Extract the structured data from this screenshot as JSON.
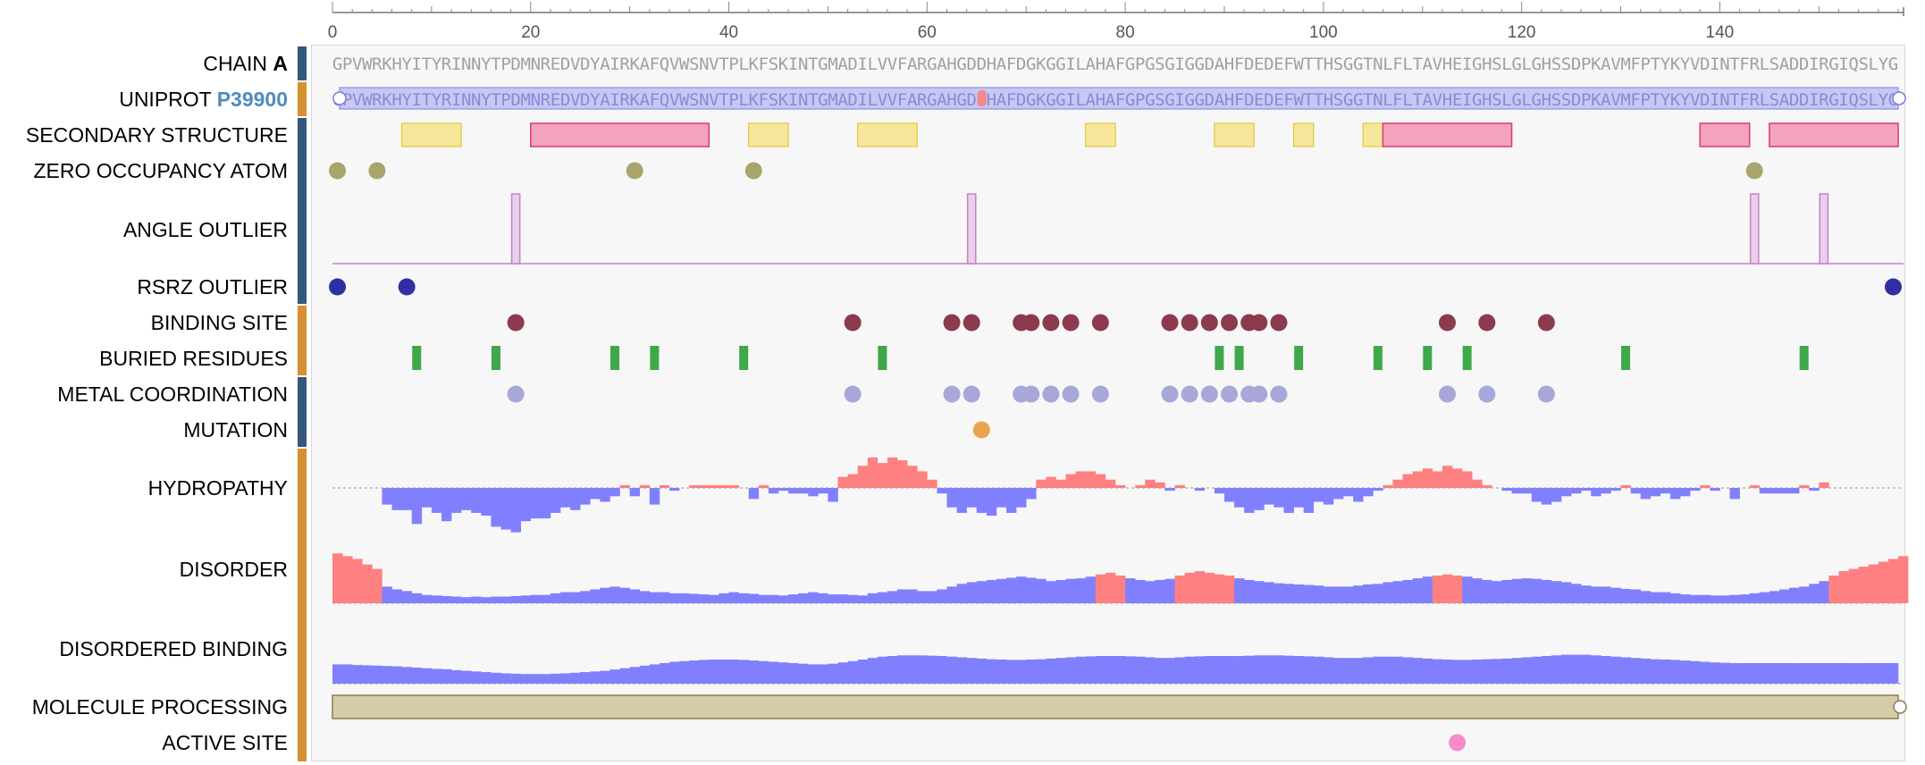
{
  "colors": {
    "structure_bar": "#34597f",
    "annotation_bar": "#d7902e",
    "helix": "#f4a3bd",
    "helix_stroke": "#d83c6a",
    "strand": "#f7e79c",
    "strand_stroke": "#e4c63b",
    "zero_occupancy": "#a8a56a",
    "angle_outlier": "#e8d0ea",
    "angle_stroke": "#c77fc8",
    "rsrz": "#2f2fa3",
    "binding_site": "#8c3a4e",
    "buried": "#3ea84a",
    "metal": "#a7a7da",
    "mutation": "#e8a64c",
    "hydro_pos": "#ff8080",
    "hydro_neg": "#8080ff",
    "disorder_pos": "#ff8080",
    "disorder_neg": "#8080ff",
    "processing": "#d7ccaa",
    "active_site": "#f78bc9",
    "uniprot_seq_bg": "#c7c7f5",
    "accent": "#4f8bbd"
  },
  "axis": {
    "min": 0,
    "max": 158,
    "ticks": [
      0,
      20,
      40,
      60,
      80,
      100,
      120,
      140
    ]
  },
  "sequence": "GPVWRKHYITYRINNYTPDMNREDVDYAIRKAFQVWSNVTPLKFSKINTGMADILVVFARGAHGDDHAFDGKGGILAHAFGPGSGIGGDAHFDEDEFWTTHSGGTNLFLTAVHEIGHSLGLGHSSDPKAVMFPTYKYVDINTFRLSADDIRGIQSLYG",
  "tracks": {
    "chain": {
      "label": "CHAIN",
      "id": "A"
    },
    "uniprot": {
      "label": "UNIPROT",
      "accession": "P39900",
      "mutation_pos": 66
    },
    "secondary_structure": {
      "label": "SECONDARY STRUCTURE",
      "strands": [
        [
          8,
          13
        ],
        [
          43,
          46
        ],
        [
          54,
          59
        ],
        [
          77,
          79
        ],
        [
          90,
          93
        ],
        [
          98,
          99
        ],
        [
          105,
          106
        ]
      ],
      "helices": [
        [
          21,
          38
        ],
        [
          107,
          119
        ],
        [
          139,
          143
        ],
        [
          146,
          158
        ]
      ]
    },
    "zero_occupancy": {
      "label": "ZERO OCCUPANCY ATOM",
      "positions": [
        1,
        5,
        31,
        43,
        144
      ]
    },
    "angle_outlier": {
      "label": "ANGLE OUTLIER",
      "positions": [
        19,
        65,
        144,
        151
      ]
    },
    "rsrz_outlier": {
      "label": "RSRZ OUTLIER",
      "positions": [
        1,
        8,
        158
      ]
    },
    "binding_site": {
      "label": "BINDING SITE",
      "positions": [
        19,
        53,
        63,
        65,
        70,
        71,
        73,
        75,
        78,
        85,
        87,
        89,
        91,
        93,
        94,
        96,
        113,
        117,
        123
      ]
    },
    "buried_residues": {
      "label": "BURIED RESIDUES",
      "positions": [
        9,
        17,
        29,
        33,
        42,
        56,
        90,
        92,
        98,
        106,
        111,
        115,
        131,
        149
      ]
    },
    "metal_coordination": {
      "label": "METAL COORDINATION",
      "positions": [
        19,
        53,
        63,
        65,
        70,
        71,
        73,
        75,
        78,
        85,
        87,
        89,
        91,
        93,
        94,
        96,
        113,
        117,
        123
      ]
    },
    "mutation": {
      "label": "MUTATION",
      "positions": [
        66
      ]
    },
    "hydropathy": {
      "label": "HYDROPATHY"
    },
    "disorder": {
      "label": "DISORDER"
    },
    "disordered_binding": {
      "label": "DISORDERED BINDING"
    },
    "molecule_processing": {
      "label": "MOLECULE PROCESSING",
      "range": [
        1,
        158
      ]
    },
    "active_site": {
      "label": "ACTIVE SITE",
      "positions": [
        114
      ]
    }
  },
  "hydropathy_values": [
    0,
    0,
    0,
    0,
    0,
    -0.3,
    -0.4,
    -0.4,
    -0.65,
    -0.35,
    -0.45,
    -0.6,
    -0.45,
    -0.4,
    -0.45,
    -0.5,
    -0.7,
    -0.75,
    -0.8,
    -0.6,
    -0.55,
    -0.55,
    -0.45,
    -0.35,
    -0.4,
    -0.3,
    -0.2,
    -0.25,
    -0.15,
    0.05,
    -0.15,
    0.05,
    -0.3,
    0.05,
    -0.05,
    0,
    0.05,
    0.05,
    0.05,
    0.05,
    0.05,
    0,
    -0.2,
    0.05,
    -0.1,
    -0.05,
    -0.1,
    -0.1,
    -0.15,
    -0.1,
    -0.25,
    0.2,
    0.25,
    0.4,
    0.55,
    0.45,
    0.55,
    0.5,
    0.4,
    0.3,
    0.15,
    -0.1,
    -0.35,
    -0.45,
    -0.35,
    -0.45,
    -0.5,
    -0.35,
    -0.45,
    -0.35,
    -0.2,
    0.15,
    0.2,
    0.15,
    0.25,
    0.3,
    0.3,
    0.25,
    0.15,
    0.05,
    0,
    0.05,
    0.15,
    0.1,
    -0.05,
    0.05,
    0,
    -0.05,
    0,
    -0.1,
    -0.25,
    -0.35,
    -0.45,
    -0.4,
    -0.3,
    -0.35,
    -0.45,
    -0.35,
    -0.45,
    -0.25,
    -0.3,
    -0.2,
    -0.15,
    -0.25,
    -0.15,
    -0.05,
    0.05,
    0.15,
    0.25,
    0.3,
    0.35,
    0.3,
    0.4,
    0.35,
    0.3,
    0.15,
    0.05,
    0,
    -0.05,
    -0.1,
    -0.1,
    -0.25,
    -0.3,
    -0.25,
    -0.15,
    -0.1,
    -0.05,
    -0.15,
    -0.1,
    -0.05,
    0.05,
    -0.1,
    -0.2,
    -0.15,
    -0.1,
    -0.2,
    -0.15,
    -0.05,
    0.05,
    -0.05,
    0,
    -0.2,
    0,
    0.05,
    -0.1,
    -0.1,
    -0.1,
    -0.1,
    0.05,
    -0.05,
    0.1,
    0,
    0,
    0,
    0,
    0,
    0
  ],
  "disorder_values": [
    0.9,
    0.85,
    0.8,
    0.7,
    0.62,
    0.3,
    0.25,
    0.22,
    0.18,
    0.15,
    0.14,
    0.13,
    0.12,
    0.11,
    0.12,
    0.11,
    0.12,
    0.12,
    0.13,
    0.14,
    0.15,
    0.15,
    0.18,
    0.2,
    0.2,
    0.22,
    0.25,
    0.28,
    0.3,
    0.28,
    0.25,
    0.22,
    0.2,
    0.2,
    0.18,
    0.18,
    0.17,
    0.16,
    0.15,
    0.18,
    0.2,
    0.18,
    0.17,
    0.15,
    0.15,
    0.14,
    0.16,
    0.18,
    0.2,
    0.18,
    0.16,
    0.16,
    0.15,
    0.14,
    0.18,
    0.2,
    0.22,
    0.25,
    0.25,
    0.22,
    0.22,
    0.25,
    0.3,
    0.35,
    0.38,
    0.4,
    0.42,
    0.44,
    0.46,
    0.48,
    0.46,
    0.44,
    0.4,
    0.42,
    0.44,
    0.45,
    0.48,
    0.52,
    0.55,
    0.5,
    0.45,
    0.42,
    0.4,
    0.42,
    0.44,
    0.5,
    0.55,
    0.58,
    0.55,
    0.52,
    0.5,
    0.45,
    0.42,
    0.4,
    0.38,
    0.36,
    0.35,
    0.34,
    0.33,
    0.32,
    0.3,
    0.3,
    0.3,
    0.32,
    0.34,
    0.35,
    0.38,
    0.4,
    0.42,
    0.45,
    0.48,
    0.5,
    0.52,
    0.5,
    0.48,
    0.45,
    0.42,
    0.4,
    0.42,
    0.44,
    0.45,
    0.44,
    0.42,
    0.4,
    0.38,
    0.35,
    0.32,
    0.3,
    0.3,
    0.28,
    0.26,
    0.25,
    0.22,
    0.2,
    0.2,
    0.18,
    0.16,
    0.15,
    0.15,
    0.14,
    0.14,
    0.15,
    0.16,
    0.18,
    0.2,
    0.22,
    0.25,
    0.28,
    0.3,
    0.35,
    0.4,
    0.5,
    0.58,
    0.62,
    0.66,
    0.7,
    0.75,
    0.8,
    0.85
  ],
  "disordered_binding_values": [
    0.6,
    0.6,
    0.58,
    0.57,
    0.56,
    0.55,
    0.54,
    0.52,
    0.5,
    0.48,
    0.46,
    0.45,
    0.42,
    0.4,
    0.38,
    0.36,
    0.34,
    0.32,
    0.31,
    0.3,
    0.3,
    0.3,
    0.31,
    0.32,
    0.34,
    0.36,
    0.38,
    0.4,
    0.44,
    0.48,
    0.52,
    0.56,
    0.6,
    0.64,
    0.68,
    0.7,
    0.72,
    0.74,
    0.75,
    0.75,
    0.75,
    0.74,
    0.72,
    0.7,
    0.68,
    0.66,
    0.64,
    0.62,
    0.6,
    0.6,
    0.62,
    0.66,
    0.7,
    0.75,
    0.8,
    0.84,
    0.86,
    0.88,
    0.88,
    0.88,
    0.87,
    0.86,
    0.84,
    0.82,
    0.8,
    0.78,
    0.76,
    0.75,
    0.74,
    0.74,
    0.75,
    0.76,
    0.78,
    0.8,
    0.82,
    0.84,
    0.85,
    0.86,
    0.86,
    0.86,
    0.85,
    0.84,
    0.82,
    0.8,
    0.8,
    0.82,
    0.84,
    0.85,
    0.86,
    0.86,
    0.86,
    0.86,
    0.87,
    0.88,
    0.88,
    0.88,
    0.87,
    0.86,
    0.85,
    0.84,
    0.82,
    0.8,
    0.8,
    0.8,
    0.82,
    0.84,
    0.84,
    0.84,
    0.82,
    0.8,
    0.78,
    0.76,
    0.75,
    0.74,
    0.74,
    0.75,
    0.76,
    0.77,
    0.78,
    0.8,
    0.82,
    0.84,
    0.86,
    0.88,
    0.9,
    0.9,
    0.9,
    0.88,
    0.86,
    0.84,
    0.82,
    0.8,
    0.78,
    0.76,
    0.75,
    0.74,
    0.72,
    0.7,
    0.68,
    0.66,
    0.65,
    0.64,
    0.64,
    0.64,
    0.64,
    0.64,
    0.64,
    0.64,
    0.64,
    0.64,
    0.64,
    0.64,
    0.64,
    0.64,
    0.64,
    0.64,
    0.64,
    0.64
  ]
}
